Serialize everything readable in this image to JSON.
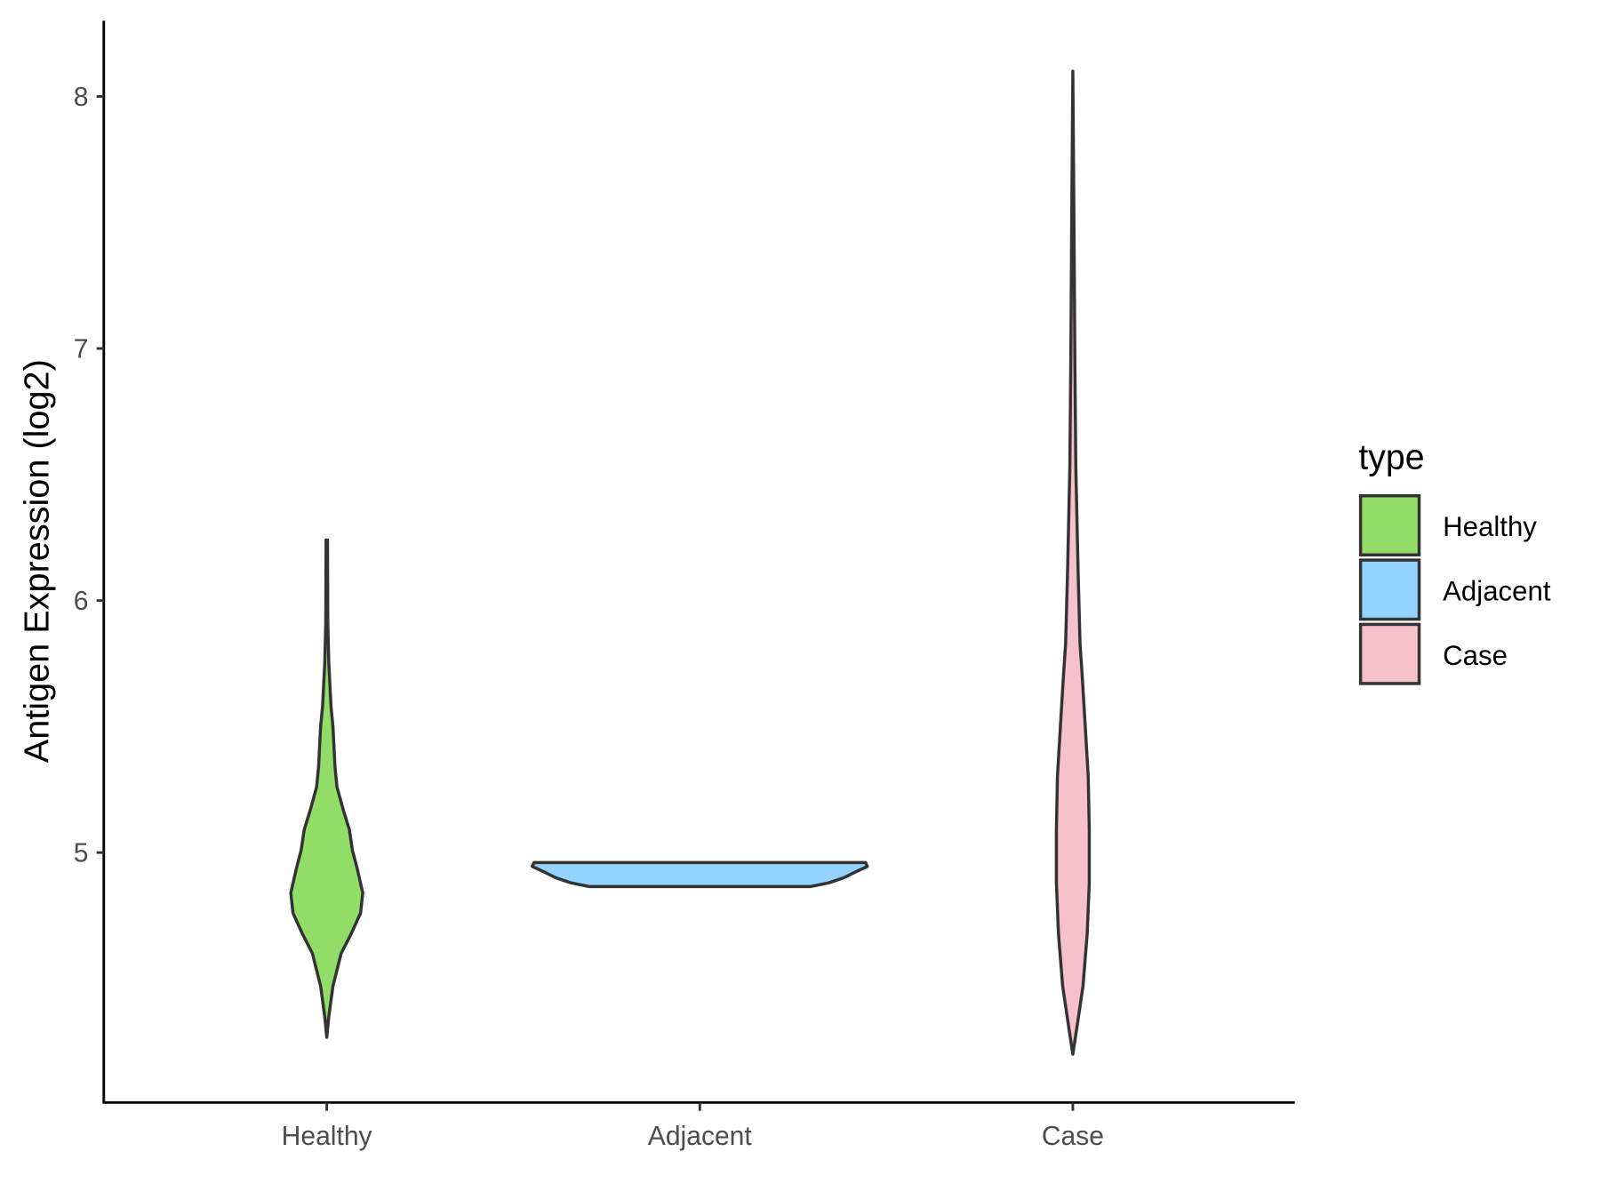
{
  "chart_data": {
    "type": "violin",
    "title": "",
    "xlabel": "",
    "ylabel": "Antigen Expression (log2)",
    "ylim": [
      4.01,
      8.3
    ],
    "yticks": [
      5,
      6,
      7,
      8
    ],
    "ytick_labels": [
      "5",
      "6",
      "7",
      "8"
    ],
    "categories": [
      "Healthy",
      "Adjacent",
      "Case"
    ],
    "grid": false,
    "legend": {
      "title": "type",
      "placement": "right",
      "entries": [
        "Healthy",
        "Adjacent",
        "Case"
      ]
    },
    "series": [
      {
        "name": "Healthy",
        "color": "#92dd67",
        "profile": [
          [
            4.267,
            0
          ],
          [
            4.35,
            0.012
          ],
          [
            4.47,
            0.037
          ],
          [
            4.6,
            0.086
          ],
          [
            4.68,
            0.147
          ],
          [
            4.76,
            0.202
          ],
          [
            4.84,
            0.215
          ],
          [
            4.93,
            0.184
          ],
          [
            5.01,
            0.153
          ],
          [
            5.09,
            0.135
          ],
          [
            5.17,
            0.098
          ],
          [
            5.26,
            0.061
          ],
          [
            5.34,
            0.049
          ],
          [
            5.5,
            0.037
          ],
          [
            5.58,
            0.025
          ],
          [
            5.75,
            0.012
          ],
          [
            5.91,
            0.006
          ],
          [
            6.24,
            0.004
          ]
        ]
      },
      {
        "name": "Adjacent",
        "color": "#93d3ff",
        "profile": [
          [
            4.865,
            0.66
          ],
          [
            4.88,
            0.77
          ],
          [
            4.9,
            0.86
          ],
          [
            4.92,
            0.92
          ],
          [
            4.945,
            1.0
          ],
          [
            4.96,
            0.99
          ]
        ]
      },
      {
        "name": "Case",
        "color": "#f7c1cb",
        "profile": [
          [
            4.2,
            0
          ],
          [
            4.31,
            0.025
          ],
          [
            4.47,
            0.061
          ],
          [
            4.68,
            0.086
          ],
          [
            4.88,
            0.098
          ],
          [
            5.09,
            0.098
          ],
          [
            5.3,
            0.092
          ],
          [
            5.5,
            0.074
          ],
          [
            5.71,
            0.055
          ],
          [
            5.83,
            0.043
          ],
          [
            6.12,
            0.031
          ],
          [
            6.53,
            0.018
          ],
          [
            6.94,
            0.012
          ],
          [
            7.56,
            0.006
          ],
          [
            8.1,
            0
          ]
        ]
      }
    ]
  }
}
